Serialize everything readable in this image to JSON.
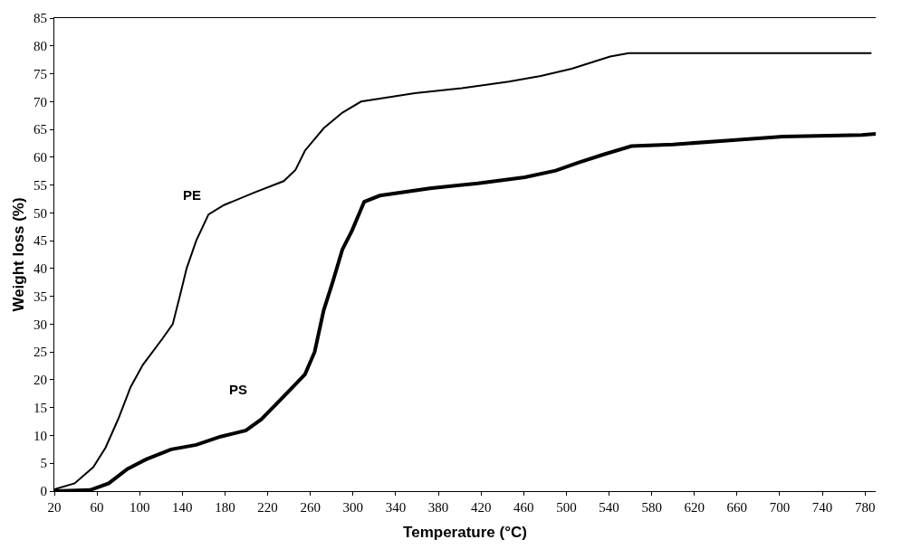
{
  "chart_data": {
    "type": "line",
    "xlabel": "Temperature (°C)",
    "ylabel": "Weight loss (%)",
    "xlim": [
      20,
      790
    ],
    "xticks": [
      20,
      60,
      100,
      140,
      180,
      220,
      260,
      300,
      340,
      380,
      420,
      460,
      500,
      540,
      580,
      620,
      660,
      700,
      740,
      780
    ],
    "ylim": [
      0,
      85
    ],
    "yticks": [
      0,
      5,
      10,
      15,
      20,
      25,
      30,
      35,
      40,
      45,
      50,
      55,
      60,
      65,
      70,
      75,
      80,
      85
    ],
    "legend": false,
    "marker": "none",
    "line_style": "solid",
    "series": [
      {
        "name": "PE",
        "color": "#000000",
        "x": [
          20,
          39,
          56.5,
          68,
          80,
          91.5,
          103,
          121,
          131,
          138,
          144,
          153,
          164.5,
          179,
          208,
          235,
          246,
          255,
          272.5,
          290,
          307.5,
          328,
          358,
          402,
          446,
          476,
          505,
          523,
          541,
          558.5,
          683,
          786
        ],
        "values": [
          0.3,
          1.4,
          4.3,
          7.8,
          13,
          18.7,
          22.7,
          27.3,
          30,
          35.3,
          40,
          45,
          49.7,
          51.4,
          53.7,
          55.7,
          57.7,
          61.2,
          65.2,
          68,
          70,
          70.6,
          71.5,
          72.4,
          73.6,
          74.6,
          75.9,
          77,
          78.1,
          78.7,
          78.7,
          78.7
        ]
      },
      {
        "name": "PS",
        "color": "#000000",
        "x": [
          20,
          53.6,
          71,
          88.6,
          106,
          129.5,
          153,
          176,
          199.6,
          214,
          235,
          255,
          264,
          272.5,
          281,
          290,
          299,
          310.5,
          325,
          372,
          417,
          461,
          490,
          511,
          535,
          561,
          600,
          653,
          703,
          777,
          790
        ],
        "values": [
          0,
          0.2,
          1.4,
          4,
          5.7,
          7.5,
          8.3,
          9.8,
          10.9,
          12.9,
          17,
          21,
          25,
          32.5,
          37.6,
          43.4,
          46.8,
          52,
          53.1,
          54.4,
          55.3,
          56.4,
          57.6,
          59,
          60.5,
          62,
          62.3,
          63,
          63.7,
          64,
          64.2
        ]
      }
    ]
  }
}
